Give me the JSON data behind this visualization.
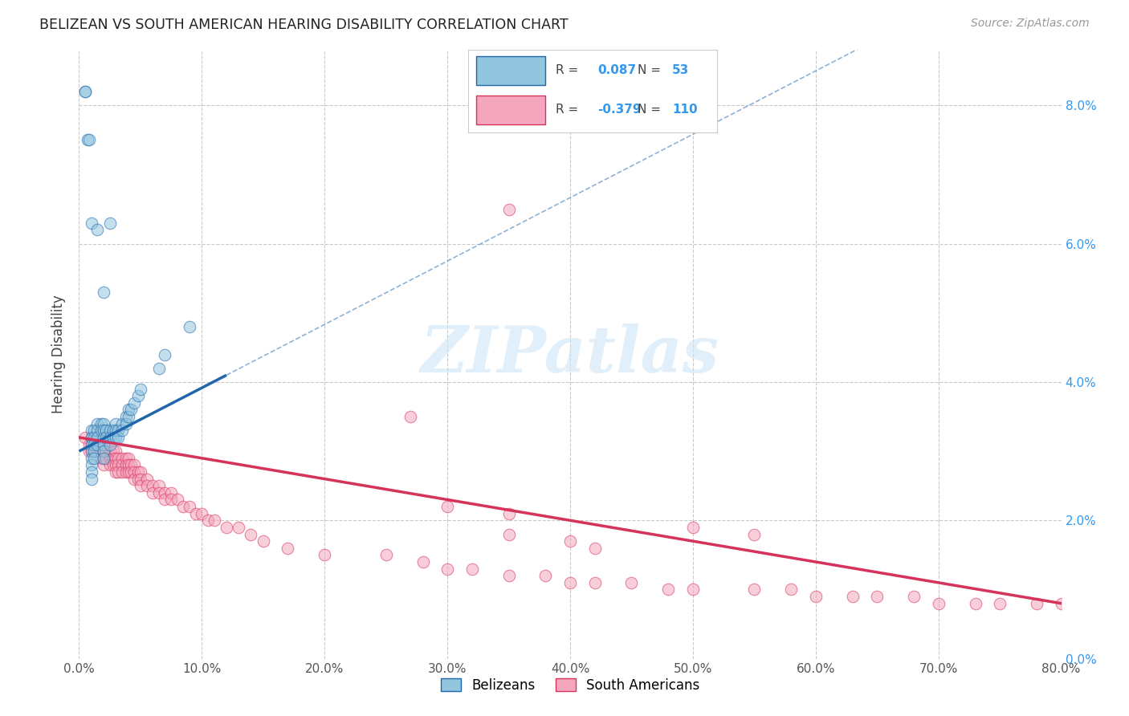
{
  "title": "BELIZEAN VS SOUTH AMERICAN HEARING DISABILITY CORRELATION CHART",
  "source": "Source: ZipAtlas.com",
  "ylabel_label": "Hearing Disability",
  "xlim": [
    0.0,
    0.8
  ],
  "ylim": [
    0.0,
    0.088
  ],
  "belizean_R": 0.087,
  "belizean_N": 53,
  "south_american_R": -0.379,
  "south_american_N": 110,
  "belizean_color": "#92c5de",
  "south_american_color": "#f4a6bf",
  "belizean_line_color": "#2166ac",
  "south_american_line_color": "#d6335a",
  "belizean_scatter_x": [
    0.005,
    0.007,
    0.01,
    0.01,
    0.01,
    0.01,
    0.01,
    0.01,
    0.01,
    0.01,
    0.012,
    0.012,
    0.012,
    0.012,
    0.012,
    0.015,
    0.015,
    0.015,
    0.015,
    0.018,
    0.018,
    0.02,
    0.02,
    0.02,
    0.02,
    0.02,
    0.02,
    0.022,
    0.022,
    0.025,
    0.025,
    0.025,
    0.028,
    0.028,
    0.03,
    0.03,
    0.03,
    0.032,
    0.032,
    0.035,
    0.035,
    0.038,
    0.038,
    0.04,
    0.04,
    0.042,
    0.045,
    0.048,
    0.05,
    0.065,
    0.07,
    0.09
  ],
  "belizean_scatter_y": [
    0.082,
    0.075,
    0.033,
    0.032,
    0.031,
    0.03,
    0.029,
    0.028,
    0.027,
    0.026,
    0.033,
    0.032,
    0.031,
    0.03,
    0.029,
    0.034,
    0.033,
    0.032,
    0.031,
    0.034,
    0.033,
    0.034,
    0.033,
    0.032,
    0.031,
    0.03,
    0.029,
    0.033,
    0.032,
    0.033,
    0.032,
    0.031,
    0.033,
    0.032,
    0.034,
    0.033,
    0.032,
    0.033,
    0.032,
    0.034,
    0.033,
    0.035,
    0.034,
    0.036,
    0.035,
    0.036,
    0.037,
    0.038,
    0.039,
    0.042,
    0.044,
    0.048
  ],
  "belizean_outlier_x": [
    0.005,
    0.008,
    0.01,
    0.015,
    0.02,
    0.025
  ],
  "belizean_outlier_y": [
    0.082,
    0.075,
    0.063,
    0.062,
    0.053,
    0.063
  ],
  "south_american_scatter_x": [
    0.005,
    0.008,
    0.008,
    0.01,
    0.01,
    0.01,
    0.012,
    0.012,
    0.015,
    0.015,
    0.015,
    0.018,
    0.018,
    0.018,
    0.02,
    0.02,
    0.02,
    0.02,
    0.022,
    0.022,
    0.025,
    0.025,
    0.025,
    0.028,
    0.028,
    0.028,
    0.03,
    0.03,
    0.03,
    0.03,
    0.032,
    0.032,
    0.032,
    0.035,
    0.035,
    0.035,
    0.038,
    0.038,
    0.038,
    0.04,
    0.04,
    0.04,
    0.042,
    0.042,
    0.045,
    0.045,
    0.045,
    0.048,
    0.048,
    0.05,
    0.05,
    0.05,
    0.055,
    0.055,
    0.06,
    0.06,
    0.065,
    0.065,
    0.07,
    0.07,
    0.075,
    0.075,
    0.08,
    0.085,
    0.09,
    0.095,
    0.1,
    0.105,
    0.11,
    0.12,
    0.13,
    0.14,
    0.15,
    0.17,
    0.2,
    0.25,
    0.28,
    0.3,
    0.32,
    0.35,
    0.38,
    0.4,
    0.42,
    0.45,
    0.48,
    0.5,
    0.55,
    0.58,
    0.6,
    0.63,
    0.65,
    0.68,
    0.7,
    0.73,
    0.75,
    0.78,
    0.8,
    0.35,
    0.4,
    0.42,
    0.3,
    0.35,
    0.27,
    0.5,
    0.55
  ],
  "south_american_scatter_y": [
    0.032,
    0.031,
    0.03,
    0.032,
    0.031,
    0.03,
    0.031,
    0.03,
    0.032,
    0.031,
    0.03,
    0.031,
    0.03,
    0.029,
    0.031,
    0.03,
    0.029,
    0.028,
    0.03,
    0.029,
    0.03,
    0.029,
    0.028,
    0.03,
    0.029,
    0.028,
    0.03,
    0.029,
    0.028,
    0.027,
    0.029,
    0.028,
    0.027,
    0.029,
    0.028,
    0.027,
    0.029,
    0.028,
    0.027,
    0.029,
    0.028,
    0.027,
    0.028,
    0.027,
    0.028,
    0.027,
    0.026,
    0.027,
    0.026,
    0.027,
    0.026,
    0.025,
    0.026,
    0.025,
    0.025,
    0.024,
    0.025,
    0.024,
    0.024,
    0.023,
    0.024,
    0.023,
    0.023,
    0.022,
    0.022,
    0.021,
    0.021,
    0.02,
    0.02,
    0.019,
    0.019,
    0.018,
    0.017,
    0.016,
    0.015,
    0.015,
    0.014,
    0.013,
    0.013,
    0.012,
    0.012,
    0.011,
    0.011,
    0.011,
    0.01,
    0.01,
    0.01,
    0.01,
    0.009,
    0.009,
    0.009,
    0.009,
    0.008,
    0.008,
    0.008,
    0.008,
    0.008,
    0.018,
    0.017,
    0.016,
    0.022,
    0.021,
    0.035,
    0.019,
    0.018
  ],
  "sa_outlier_x": [
    0.35
  ],
  "sa_outlier_y": [
    0.065
  ],
  "belizean_line_x0": 0.0,
  "belizean_line_y0": 0.03,
  "belizean_line_x1": 0.12,
  "belizean_line_y1": 0.041,
  "south_american_line_x0": 0.0,
  "south_american_line_y0": 0.032,
  "south_american_line_x1": 0.8,
  "south_american_line_y1": 0.008
}
